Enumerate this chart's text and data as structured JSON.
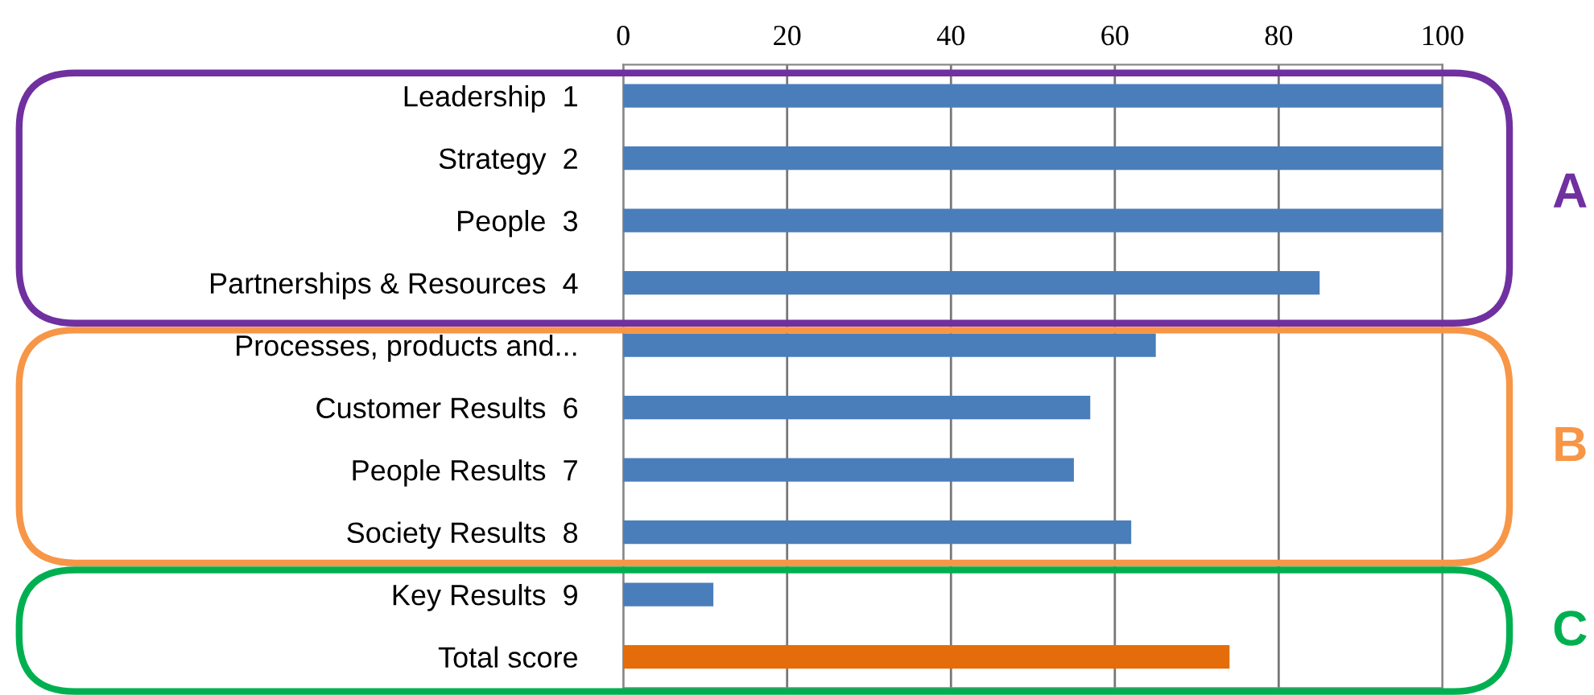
{
  "chart_data": {
    "type": "bar",
    "orientation": "horizontal",
    "categories": [
      "Leadership  1",
      "Strategy  2",
      "People  3",
      "Partnerships & Resources  4",
      "Processes, products and...",
      "Customer Results  6",
      "People Results  7",
      "Society Results  8",
      "Key Results  9",
      "Total score"
    ],
    "values": [
      100,
      100,
      100,
      85,
      65,
      57,
      55,
      62,
      11,
      74
    ],
    "colors": [
      "#4a7ebb",
      "#4a7ebb",
      "#4a7ebb",
      "#4a7ebb",
      "#4a7ebb",
      "#4a7ebb",
      "#4a7ebb",
      "#4a7ebb",
      "#4a7ebb",
      "#e46c0a"
    ],
    "xlim": [
      0,
      100
    ],
    "xticks": [
      0,
      20,
      40,
      60,
      80,
      100
    ],
    "grid": "x",
    "annotations": [
      "A",
      "B",
      "C"
    ]
  }
}
